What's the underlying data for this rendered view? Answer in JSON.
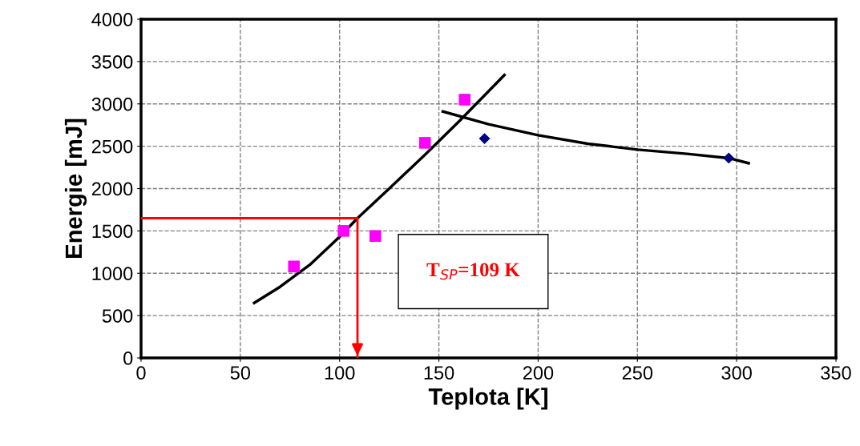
{
  "chart_data": {
    "type": "scatter",
    "xlabel": "Teplota [K]",
    "ylabel": "Energie [mJ]",
    "xlim": [
      0,
      350
    ],
    "xticks": [
      0,
      50,
      100,
      150,
      200,
      250,
      300,
      350
    ],
    "ylim": [
      0,
      4000
    ],
    "yticks": [
      0,
      500,
      1000,
      1500,
      2000,
      2500,
      3000,
      3500,
      4000
    ],
    "grid": true,
    "series": [
      {
        "type": "line",
        "color": "#000000",
        "x": [
          57,
          70,
          85,
          100,
          109,
          125,
          143,
          160,
          183
        ],
        "values": [
          650,
          840,
          1100,
          1430,
          1650,
          2000,
          2400,
          2790,
          3340
        ],
        "marker": "none"
      },
      {
        "type": "line",
        "color": "#000000",
        "x": [
          152,
          175,
          200,
          225,
          250,
          275,
          296,
          306
        ],
        "values": [
          2910,
          2760,
          2630,
          2530,
          2460,
          2410,
          2360,
          2300
        ],
        "marker": "none"
      },
      {
        "type": "line",
        "color": "#ff0000",
        "x": [
          0,
          109,
          109
        ],
        "values": [
          1650,
          1650,
          0
        ],
        "marker": "none"
      },
      {
        "color": "#ff00ff",
        "x": [
          77,
          102,
          118,
          143,
          163
        ],
        "values": [
          1080,
          1500,
          1440,
          2540,
          3050
        ],
        "marker": "square"
      },
      {
        "color": "#000080",
        "x": [
          173,
          296
        ],
        "values": [
          2590,
          2360
        ],
        "marker": "diamond"
      }
    ],
    "annotations": [
      "T$_{SP}$=109 K"
    ]
  }
}
